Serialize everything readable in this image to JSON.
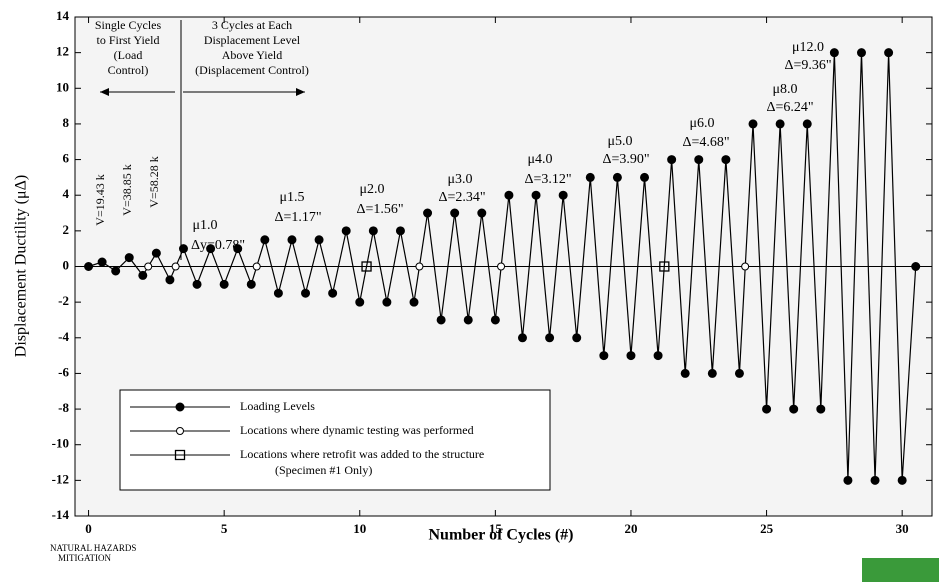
{
  "chart_data": {
    "type": "line",
    "xlabel": "Number of Cycles (#)",
    "ylabel": "Displacement Ductility (μΔ)",
    "xlim": [
      -0.5,
      31.1
    ],
    "ylim": [
      -14,
      14
    ],
    "xticks": [
      0,
      5,
      10,
      15,
      20,
      25,
      30
    ],
    "yticks": [
      -14,
      -12,
      -10,
      -8,
      -6,
      -4,
      -2,
      0,
      2,
      4,
      6,
      8,
      10,
      12,
      14
    ],
    "legend": "lower left",
    "series": [
      {
        "name": "Loading Levels",
        "color": "#000000",
        "marker": "filled-circle",
        "x": [
          0,
          0.5,
          1,
          1.5,
          2,
          2.5,
          3,
          3.5,
          4,
          4.5,
          5,
          5.5,
          6,
          6.5,
          7,
          7.5,
          8,
          8.5,
          9,
          9.5,
          10,
          10.5,
          11,
          11.5,
          12,
          12.5,
          13,
          13.5,
          14,
          14.5,
          15,
          15.5,
          16,
          16.5,
          17,
          17.5,
          18,
          18.5,
          19,
          19.5,
          20,
          20.5,
          21,
          21.5,
          22,
          22.5,
          23,
          23.5,
          24,
          24.5,
          25,
          25.5,
          26,
          26.5,
          27,
          27.5,
          28,
          28.5,
          29,
          29.5,
          30,
          30.5
        ],
        "values": [
          0,
          0.25,
          -0.25,
          0.5,
          -0.5,
          0.75,
          -0.75,
          1,
          -1,
          1,
          -1,
          1,
          -1,
          1.5,
          -1.5,
          1.5,
          -1.5,
          1.5,
          -1.5,
          2,
          -2,
          2,
          -2,
          2,
          -2,
          3,
          -3,
          3,
          -3,
          3,
          -3,
          4,
          -4,
          4,
          -4,
          4,
          -4,
          5,
          -5,
          5,
          -5,
          5,
          -5,
          6,
          -6,
          6,
          -6,
          6,
          -6,
          8,
          -8,
          8,
          -8,
          8,
          -8,
          12,
          -12,
          12,
          -12,
          12,
          -12,
          0
        ]
      },
      {
        "name": "Locations where dynamic testing was performed",
        "color": "#000000",
        "marker": "open-circle",
        "x": [
          2.2,
          3.21,
          6.2,
          12.2,
          15.21,
          24.21
        ],
        "values": [
          0,
          0,
          0,
          0,
          0,
          0
        ]
      },
      {
        "name": "Locations where retrofit was added to the structure",
        "sub": "(Specimen #1 Only)",
        "color": "#000000",
        "marker": "open-square",
        "x": [
          10.25,
          21.23
        ],
        "values": [
          0,
          0
        ]
      }
    ],
    "annotations": {
      "phase1": [
        "Single Cycles",
        "to First Yield",
        "(Load",
        "Control)"
      ],
      "phase2": [
        "3 Cycles at Each",
        "Displacement Level",
        "Above Yield",
        "(Displacement Control)"
      ],
      "loads": [
        "V=19.43 k",
        "V=38.85 k",
        "V=58.28 k"
      ],
      "levels": [
        {
          "mu": "μ1.0",
          "disp": "Δy=0.78\""
        },
        {
          "mu": "μ1.5",
          "disp": "Δ=1.17\""
        },
        {
          "mu": "μ2.0",
          "disp": "Δ=1.56\""
        },
        {
          "mu": "μ3.0",
          "disp": "Δ=2.34\""
        },
        {
          "mu": "μ4.0",
          "disp": "Δ=3.12\""
        },
        {
          "mu": "μ5.0",
          "disp": "Δ=3.90\""
        },
        {
          "mu": "μ6.0",
          "disp": "Δ=4.68\""
        },
        {
          "mu": "μ8.0",
          "disp": "Δ=6.24\""
        },
        {
          "mu": "μ12.0",
          "disp": "Δ=9.36\""
        }
      ]
    },
    "logo": [
      "NATURAL HAZARDS",
      "MITIGATION"
    ]
  }
}
